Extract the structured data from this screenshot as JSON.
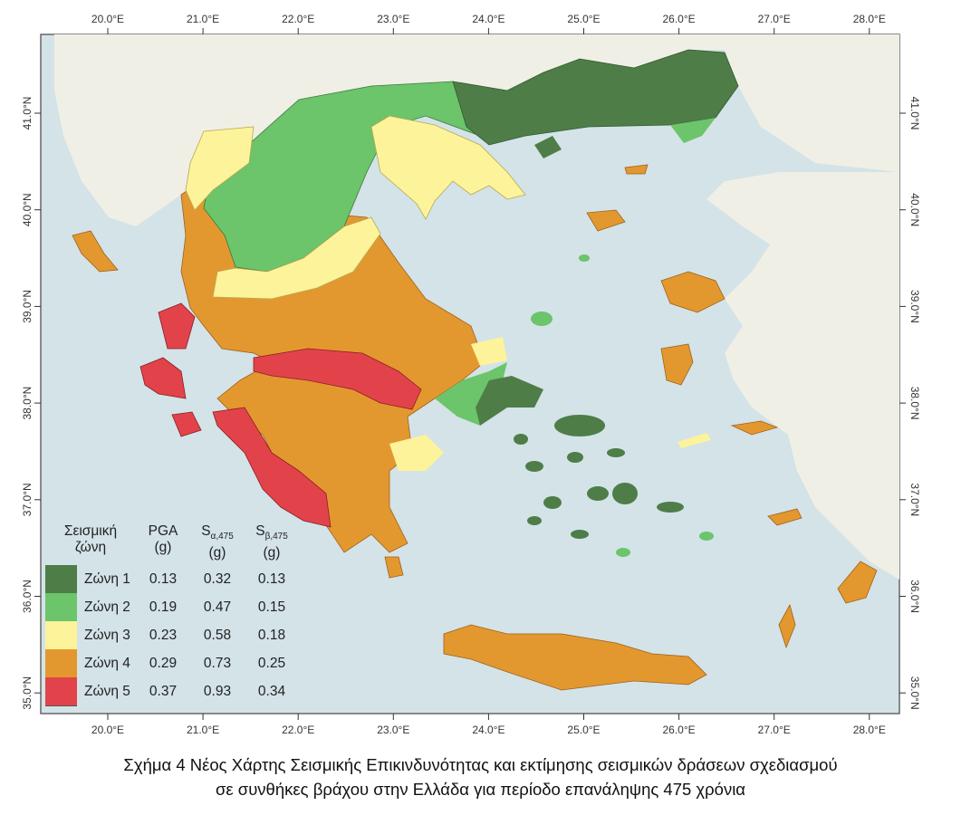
{
  "axes": {
    "longitudes": [
      "20.0°E",
      "21.0°E",
      "22.0°E",
      "23.0°E",
      "24.0°E",
      "25.0°E",
      "26.0°E",
      "27.0°E",
      "28.0°E"
    ],
    "latitudes": [
      "41.0°N",
      "40.0°N",
      "39.0°N",
      "38.0°N",
      "37.0°N",
      "36.0°N",
      "35.0°N"
    ]
  },
  "legend": {
    "title_line1": "Σεισμική",
    "title_line2": "ζώνη",
    "col_pga": "PGA",
    "col_sa": "S",
    "col_sa_sub": "α,475",
    "col_sb": "S",
    "col_sb_sub": "β,475",
    "unit": "(g)",
    "zones": [
      {
        "label": "Ζώνη 1",
        "pga": "0.13",
        "sa": "0.32",
        "sb": "0.13",
        "color": "#4e7d48"
      },
      {
        "label": "Ζώνη 2",
        "pga": "0.19",
        "sa": "0.47",
        "sb": "0.15",
        "color": "#6cc46b"
      },
      {
        "label": "Ζώνη 3",
        "pga": "0.23",
        "sa": "0.58",
        "sb": "0.18",
        "color": "#fdf39a"
      },
      {
        "label": "Ζώνη 4",
        "pga": "0.29",
        "sa": "0.73",
        "sb": "0.25",
        "color": "#e3982f"
      },
      {
        "label": "Ζώνη 5",
        "pga": "0.37",
        "sa": "0.93",
        "sb": "0.34",
        "color": "#e2434b"
      }
    ]
  },
  "caption": {
    "line1": "Σχήμα 4 Νέος Χάρτης Σεισμικής Επικινδυνότητας και εκτίμησης σεισμικών δράσεων σχεδιασμού",
    "line2": "σε συνθήκες βράχου στην Ελλάδα για περίοδο επανάληψης 475 χρόνια"
  }
}
